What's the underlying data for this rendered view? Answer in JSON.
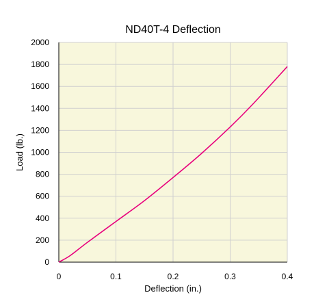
{
  "chart_data": {
    "type": "line",
    "title": "ND40T-4 Deflection",
    "xlabel": "Deflection (in.)",
    "ylabel": "Load (lb.)",
    "xlim": [
      0,
      0.4
    ],
    "ylim": [
      0,
      2000
    ],
    "x_ticks": [
      "0",
      "0.1",
      "0.2",
      "0.3",
      "0.4"
    ],
    "y_ticks": [
      "0",
      "200",
      "400",
      "600",
      "800",
      "1000",
      "1200",
      "1400",
      "1600",
      "1800",
      "2000"
    ],
    "grid": true,
    "legend": "none",
    "colors": {
      "plot_background": "#f8f7dc",
      "gridline": "#cfcfcf",
      "line": "#e8007d",
      "axis": "#000000"
    },
    "series": [
      {
        "x": [
          0,
          0.02,
          0.05,
          0.1,
          0.15,
          0.2,
          0.25,
          0.3,
          0.34,
          0.4
        ],
        "values": [
          0,
          60,
          180,
          370,
          560,
          770,
          990,
          1230,
          1440,
          1780
        ]
      }
    ]
  }
}
